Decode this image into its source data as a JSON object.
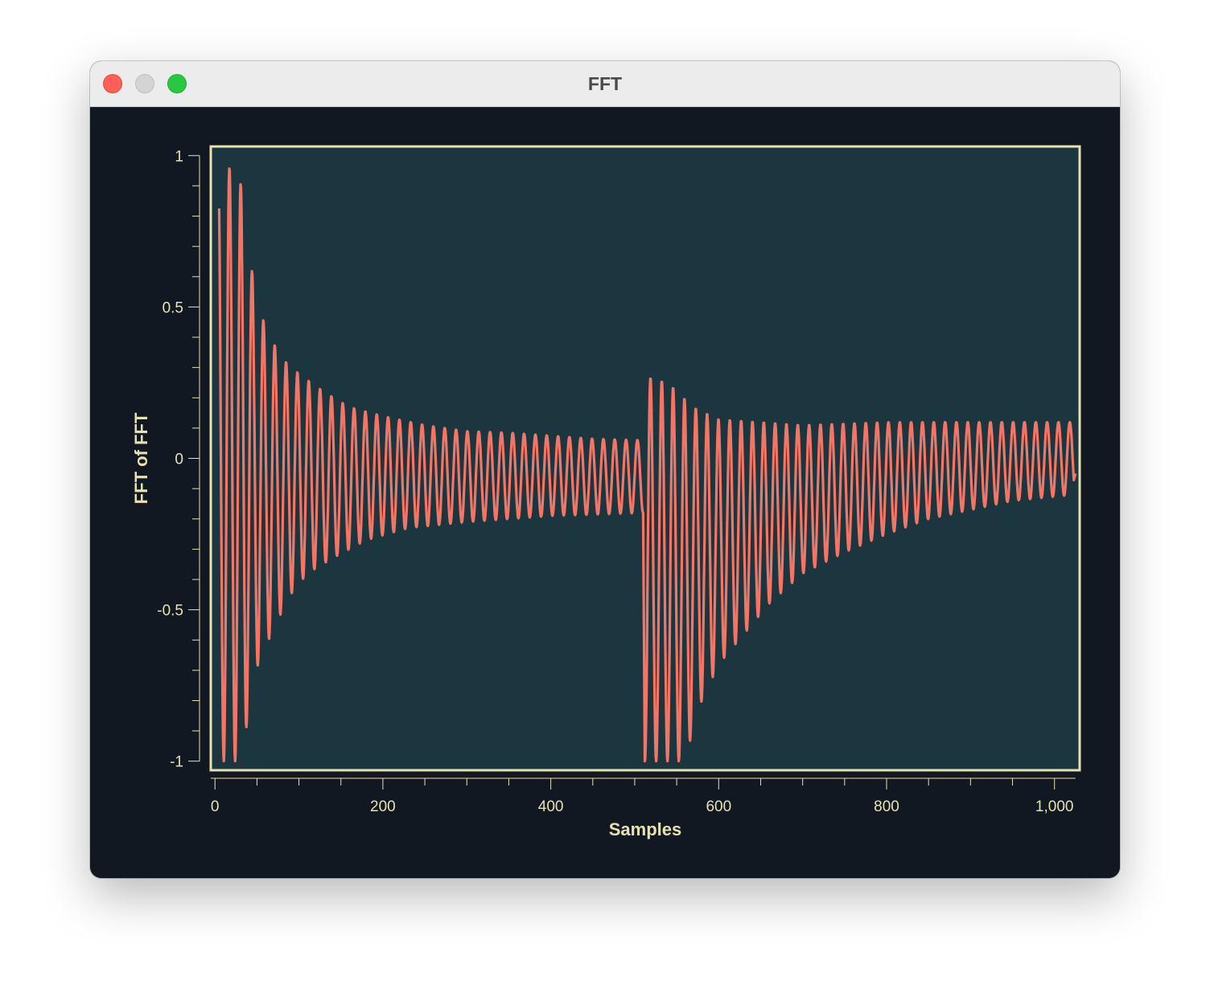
{
  "window": {
    "title": "FFT",
    "controls": [
      "close",
      "minimize",
      "zoom"
    ]
  },
  "colors": {
    "background": "#111822",
    "plot_area": "#1c3640",
    "frame": "#e8e2b0",
    "line": "#f27566",
    "text": "#e8e2b0"
  },
  "chart_data": {
    "type": "line",
    "title": "",
    "xlabel": "Samples",
    "ylabel": "FFT of FFT",
    "xlim": [
      -5,
      1030
    ],
    "ylim": [
      -1.03,
      1.03
    ],
    "x_ticks": [
      0,
      200,
      400,
      600,
      800,
      1000
    ],
    "x_tick_labels": [
      "0",
      "200",
      "400",
      "600",
      "800",
      "1,000"
    ],
    "y_ticks": [
      1,
      0.5,
      0,
      -0.5,
      -1
    ],
    "y_tick_labels": [
      "1",
      "0.5",
      "0",
      "-0.5",
      "-1"
    ],
    "grid": false,
    "legend": "none",
    "series": [
      {
        "description": "oscillating signal, period ~13.5 samples, decaying from x=0 to x~510, jumping near x=512 and decaying to x~1023",
        "period": 13.5,
        "segments": [
          {
            "x_start": 5,
            "x_end": 510,
            "envelope_points": [
              [
                5,
                1.0
              ],
              [
                30,
                0.92
              ],
              [
                45,
                0.6
              ],
              [
                60,
                0.43
              ],
              [
                80,
                0.33
              ],
              [
                100,
                0.28
              ],
              [
                130,
                0.22
              ],
              [
                160,
                0.17
              ],
              [
                200,
                0.14
              ],
              [
                250,
                0.11
              ],
              [
                300,
                0.09
              ],
              [
                350,
                0.085
              ],
              [
                400,
                0.075
              ],
              [
                450,
                0.065
              ],
              [
                510,
                0.06
              ]
            ],
            "offset_points": [
              [
                5,
                -0.1
              ],
              [
                100,
                -0.1
              ],
              [
                200,
                -0.1
              ],
              [
                300,
                -0.1
              ],
              [
                400,
                -0.11
              ],
              [
                510,
                -0.12
              ]
            ],
            "lower_points": [
              [
                5,
                -1.0
              ],
              [
                30,
                -1.0
              ],
              [
                40,
                -0.85
              ],
              [
                50,
                -0.69
              ],
              [
                70,
                -0.56
              ],
              [
                90,
                -0.45
              ],
              [
                110,
                -0.38
              ],
              [
                140,
                -0.33
              ],
              [
                180,
                -0.27
              ],
              [
                230,
                -0.23
              ],
              [
                300,
                -0.21
              ],
              [
                400,
                -0.19
              ],
              [
                510,
                -0.18
              ]
            ]
          },
          {
            "x_start": 512,
            "x_end": 1023,
            "envelope_points": [
              [
                512,
                -0.2
              ],
              [
                515,
                0.27
              ],
              [
                540,
                0.25
              ],
              [
                570,
                0.17
              ],
              [
                600,
                0.13
              ],
              [
                700,
                0.11
              ],
              [
                800,
                0.12
              ],
              [
                900,
                0.12
              ],
              [
                1023,
                0.12
              ]
            ],
            "lower_points": [
              [
                512,
                -1.0
              ],
              [
                560,
                -1.0
              ],
              [
                575,
                -0.83
              ],
              [
                600,
                -0.68
              ],
              [
                630,
                -0.58
              ],
              [
                660,
                -0.48
              ],
              [
                700,
                -0.38
              ],
              [
                750,
                -0.31
              ],
              [
                800,
                -0.25
              ],
              [
                850,
                -0.2
              ],
              [
                900,
                -0.17
              ],
              [
                950,
                -0.14
              ],
              [
                1023,
                -0.12
              ]
            ]
          }
        ],
        "end_value": -0.05
      }
    ]
  }
}
